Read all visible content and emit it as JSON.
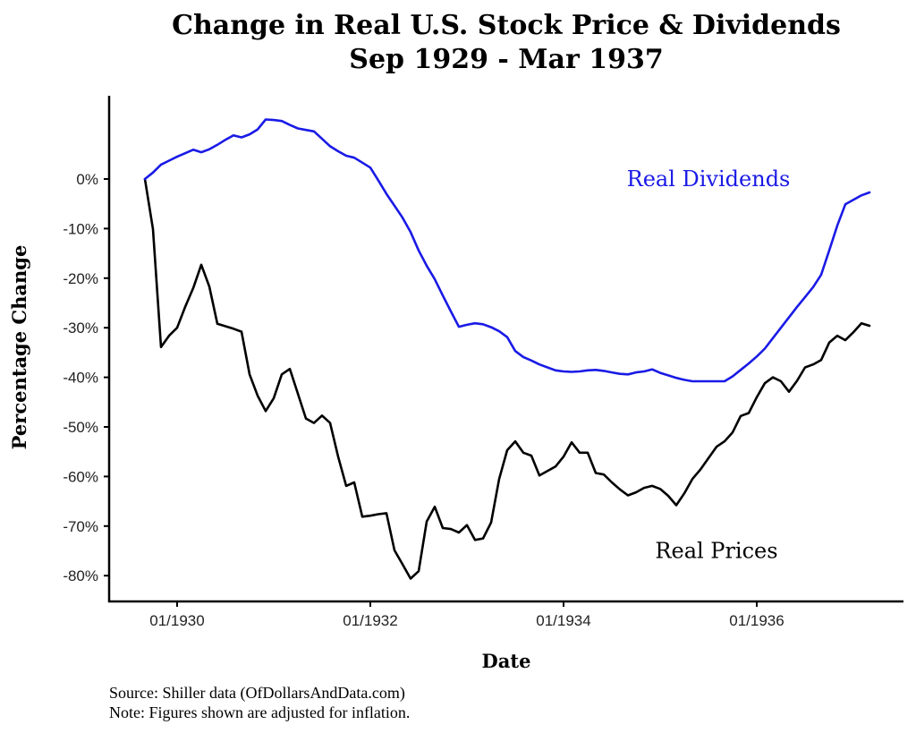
{
  "chart_data": {
    "type": "line",
    "title": "Change in Real U.S. Stock Price & Dividends",
    "subtitle": "Sep 1929 - Mar 1937",
    "xlabel": "Date",
    "ylabel": "Percentage Change",
    "x_start": "1929-09",
    "x_end": "1937-03",
    "x_frequency": "monthly",
    "xlim_months_from_start": [
      -4,
      94
    ],
    "ylim": [
      -85,
      17
    ],
    "grid": false,
    "legend": "inline labels",
    "x_ticks": [
      {
        "label": "01/1930",
        "month_index": 4
      },
      {
        "label": "01/1932",
        "month_index": 28
      },
      {
        "label": "01/1934",
        "month_index": 52
      },
      {
        "label": "01/1936",
        "month_index": 76
      }
    ],
    "y_ticks": [
      {
        "label": "0%",
        "value": 0
      },
      {
        "label": "-10%",
        "value": -10
      },
      {
        "label": "-20%",
        "value": -20
      },
      {
        "label": "-30%",
        "value": -30
      },
      {
        "label": "-40%",
        "value": -40
      },
      {
        "label": "-50%",
        "value": -50
      },
      {
        "label": "-60%",
        "value": -60
      },
      {
        "label": "-70%",
        "value": -70
      },
      {
        "label": "-80%",
        "value": -80
      }
    ],
    "series": [
      {
        "name": "Real Dividends",
        "color": "#1a1ae6",
        "label_anchor": {
          "month_index": 70,
          "value": 0
        },
        "values": [
          0.0,
          1.3,
          2.9,
          3.7,
          4.5,
          5.2,
          5.9,
          5.4,
          6.0,
          6.9,
          7.9,
          8.8,
          8.4,
          9.0,
          10.0,
          12.0,
          11.9,
          11.7,
          10.9,
          10.2,
          9.9,
          9.6,
          8.1,
          6.6,
          5.6,
          4.7,
          4.3,
          3.3,
          2.3,
          -0.3,
          -3.0,
          -5.4,
          -7.8,
          -10.7,
          -14.4,
          -17.5,
          -20.2,
          -23.5,
          -26.7,
          -29.8,
          -29.4,
          -29.1,
          -29.3,
          -29.9,
          -30.7,
          -31.9,
          -34.7,
          -35.9,
          -36.6,
          -37.4,
          -38.0,
          -38.6,
          -38.8,
          -38.9,
          -38.8,
          -38.6,
          -38.5,
          -38.7,
          -39.0,
          -39.3,
          -39.4,
          -39.0,
          -38.8,
          -38.4,
          -39.1,
          -39.6,
          -40.1,
          -40.5,
          -40.8,
          -40.8,
          -40.8,
          -40.8,
          -40.8,
          -39.8,
          -38.5,
          -37.2,
          -35.8,
          -34.2,
          -32.1,
          -30.0,
          -27.9,
          -25.8,
          -23.8,
          -21.8,
          -19.3,
          -14.4,
          -9.4,
          -5.1,
          -4.2,
          -3.3,
          -2.7
        ]
      },
      {
        "name": "Real Prices",
        "color": "#000000",
        "label_anchor": {
          "month_index": 71,
          "value": -75
        },
        "values": [
          0.0,
          -10.1,
          -33.9,
          -31.6,
          -30.0,
          -25.8,
          -22.0,
          -17.3,
          -21.7,
          -29.2,
          -29.7,
          -30.2,
          -30.8,
          -39.4,
          -43.7,
          -46.8,
          -44.2,
          -39.4,
          -38.3,
          -43.3,
          -48.3,
          -49.2,
          -47.7,
          -49.2,
          -56.0,
          -61.9,
          -61.2,
          -68.1,
          -67.9,
          -67.6,
          -67.4,
          -74.9,
          -77.7,
          -80.6,
          -79.1,
          -69.1,
          -66.1,
          -70.4,
          -70.6,
          -71.3,
          -69.8,
          -72.8,
          -72.5,
          -69.3,
          -60.5,
          -54.7,
          -52.9,
          -55.2,
          -55.8,
          -59.8,
          -58.9,
          -58.0,
          -56.0,
          -53.1,
          -55.2,
          -55.2,
          -59.3,
          -59.6,
          -61.2,
          -62.6,
          -63.8,
          -63.2,
          -62.3,
          -61.9,
          -62.5,
          -63.9,
          -65.8,
          -63.4,
          -60.5,
          -58.6,
          -56.3,
          -54.0,
          -52.9,
          -51.1,
          -47.8,
          -47.2,
          -44.0,
          -41.2,
          -40.0,
          -40.8,
          -42.9,
          -40.7,
          -38.0,
          -37.4,
          -36.5,
          -33.0,
          -31.6,
          -32.5,
          -30.9,
          -29.1,
          -29.6
        ]
      }
    ],
    "footnotes": [
      "Source:  Shiller data (OfDollarsAndData.com)",
      "Note: Figures shown are adjusted for inflation."
    ]
  }
}
